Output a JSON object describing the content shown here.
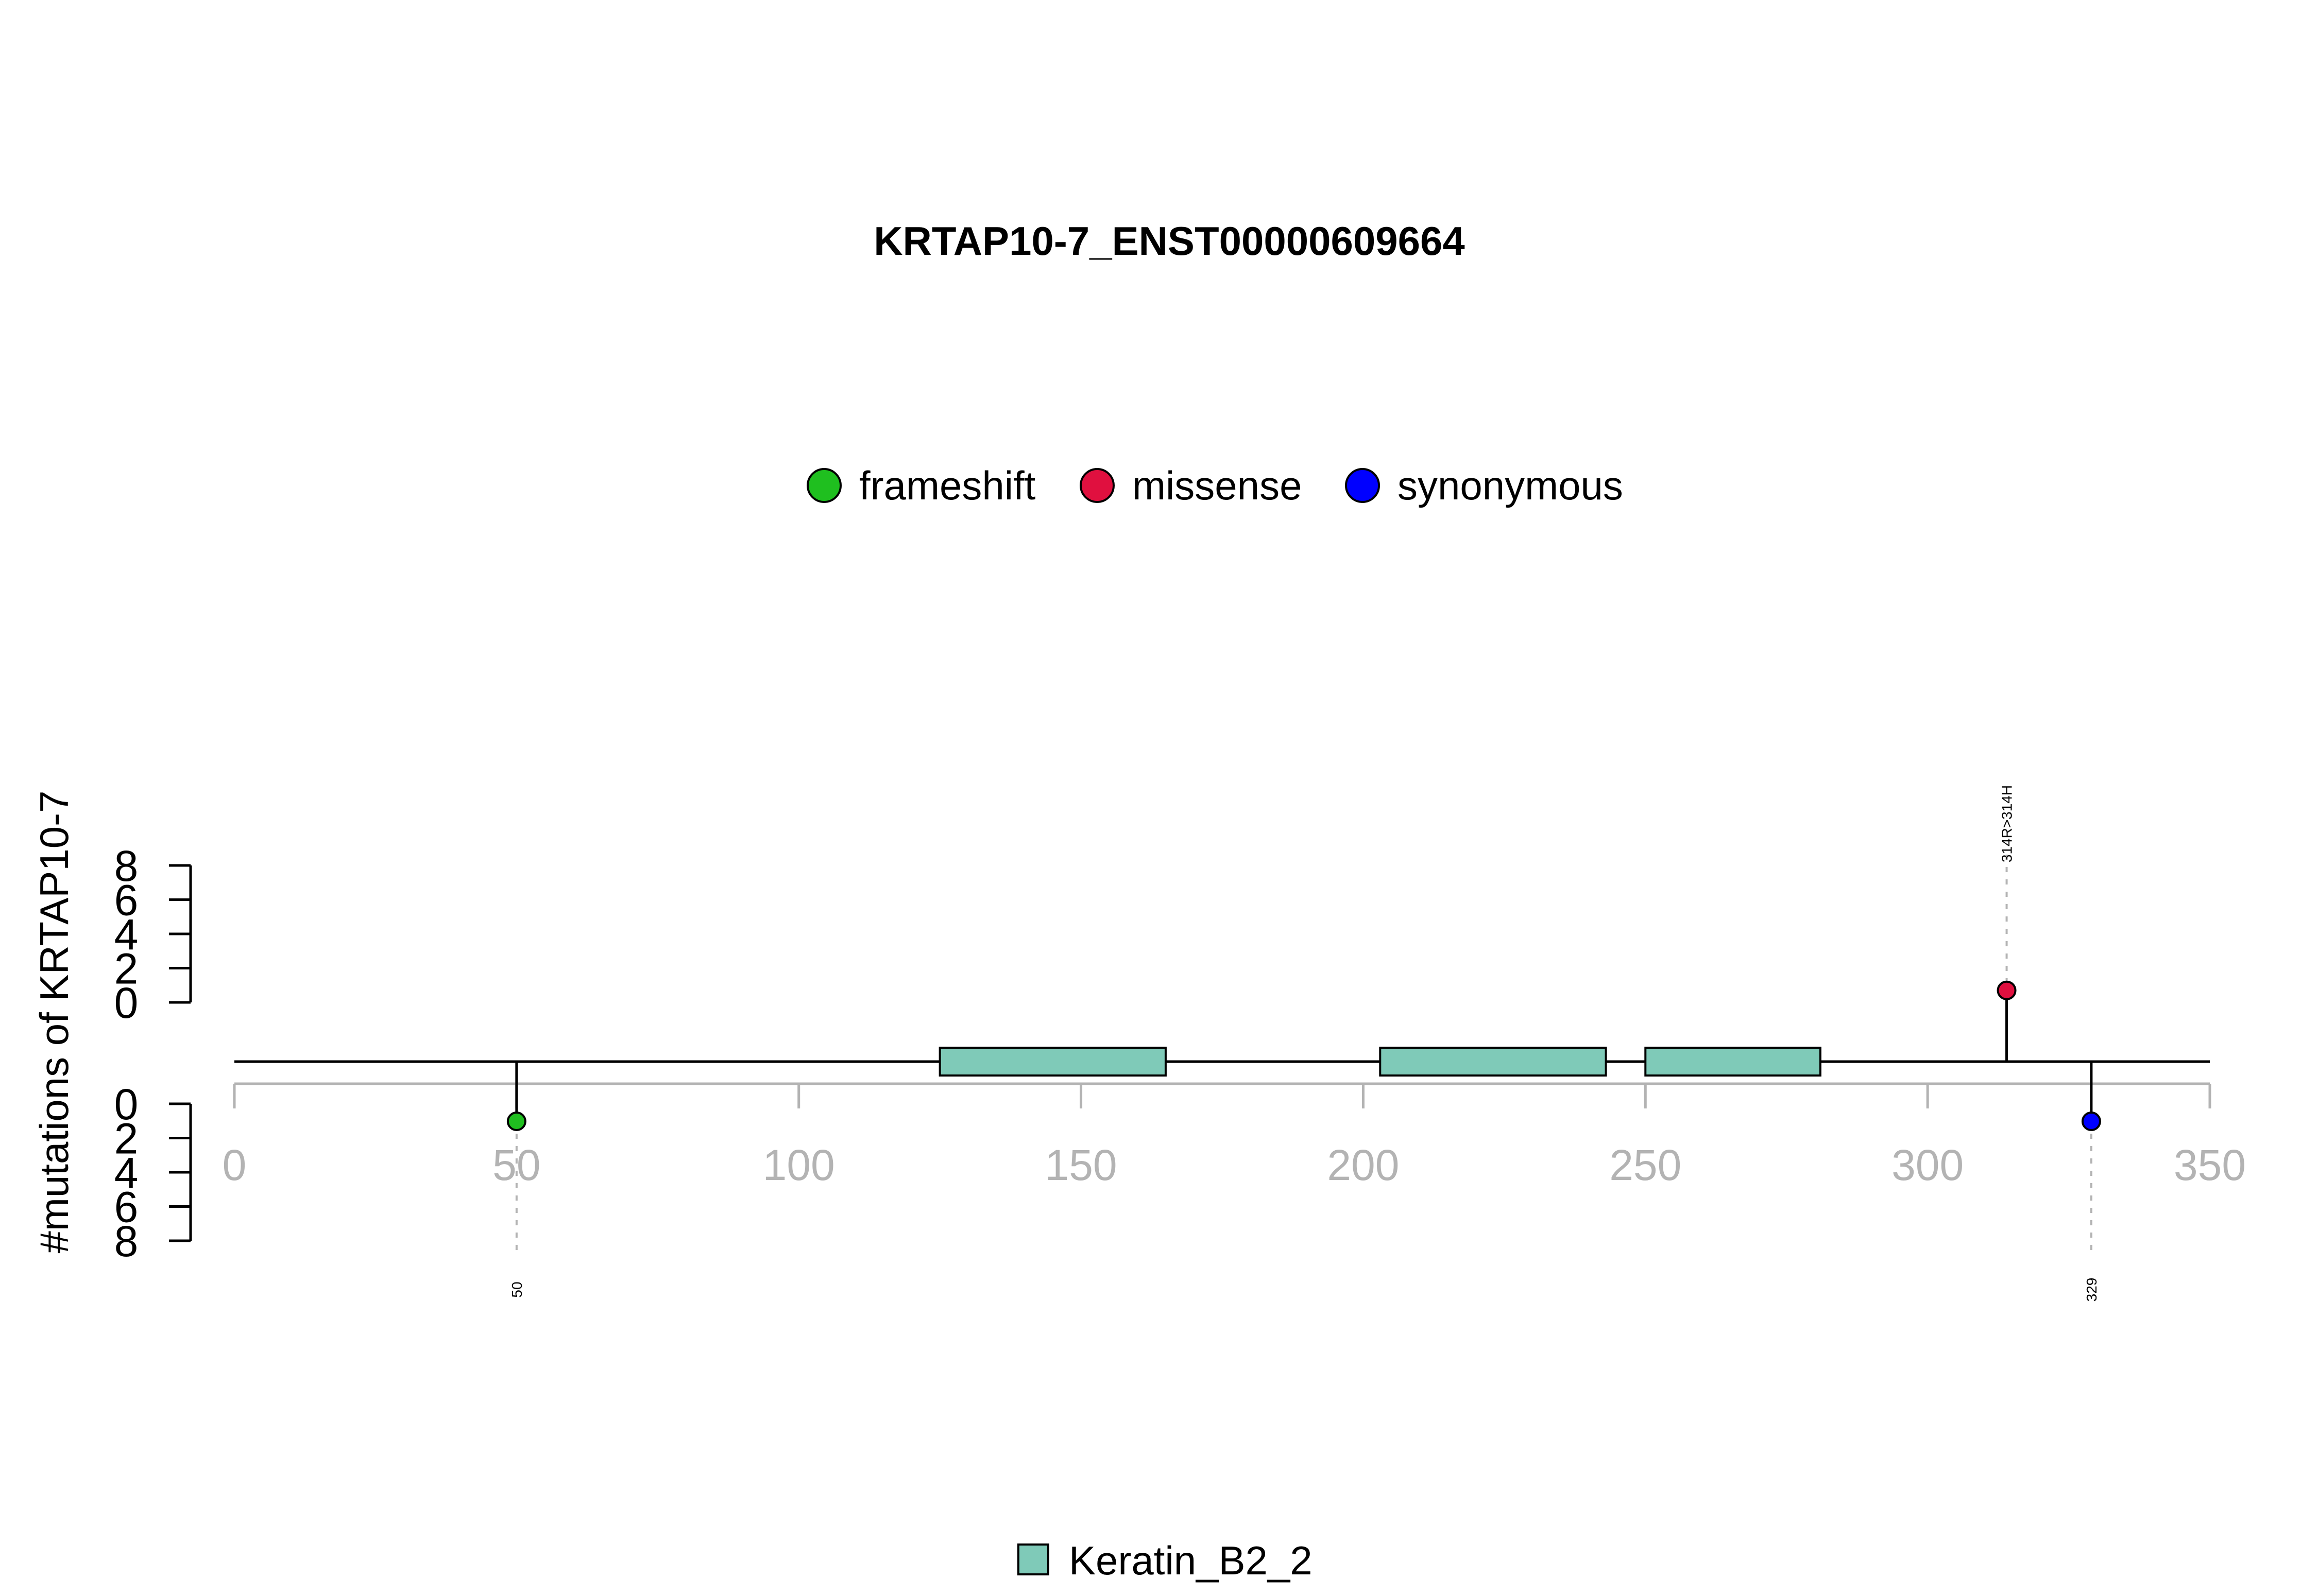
{
  "chart_data": {
    "type": "lollipop",
    "title": "KRTAP10-7_ENST00000609664",
    "ylabel": "#mutations of KRTAP10-7",
    "xlim": [
      0,
      350
    ],
    "x_ticks": [
      0,
      50,
      100,
      150,
      200,
      250,
      300,
      350
    ],
    "count_ticks": [
      0,
      2,
      4,
      6,
      8
    ],
    "legend": [
      {
        "label": "frameshift",
        "color": "#1fbf1f"
      },
      {
        "label": "missense",
        "color": "#e0103f"
      },
      {
        "label": "synonymous",
        "color": "#0000ff"
      }
    ],
    "domains": [
      {
        "name": "Keratin_B2_2",
        "start": 125,
        "end": 165
      },
      {
        "name": "Keratin_B2_2",
        "start": 203,
        "end": 243
      },
      {
        "name": "Keratin_B2_2",
        "start": 250,
        "end": 281
      }
    ],
    "domain_legend": {
      "label": "Keratin_B2_2",
      "color": "#7fcab8"
    },
    "mutations": [
      {
        "position": 50,
        "count": 1,
        "type": "frameshift",
        "side": "bottom",
        "label": "50"
      },
      {
        "position": 314,
        "count": 1,
        "type": "missense",
        "side": "top",
        "label": "314R>314H"
      },
      {
        "position": 329,
        "count": 1,
        "type": "synonymous",
        "side": "bottom",
        "label": "329"
      }
    ]
  }
}
